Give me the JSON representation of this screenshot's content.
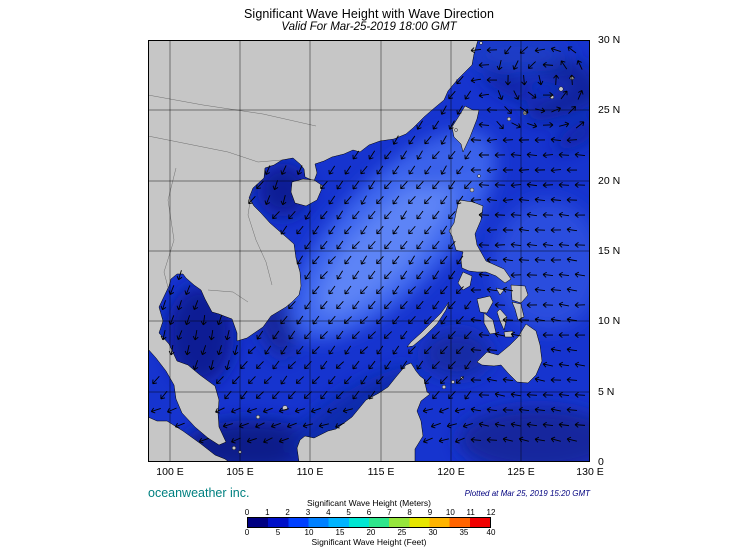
{
  "title": "Significant Wave Height with Wave Direction",
  "subtitle": "Valid For Mar-25-2019 18:00 GMT",
  "axes": {
    "lat": [
      "30 N",
      "25 N",
      "20 N",
      "15 N",
      "10 N",
      "5 N",
      "0"
    ],
    "lon": [
      "100 E",
      "105 E",
      "110 E",
      "115 E",
      "120 E",
      "125 E",
      "130 E"
    ]
  },
  "credit": "oceanweather inc.",
  "plotted": "Plotted at Mar 25, 2019 15:20 GMT",
  "legend": {
    "meters_label": "Significant Wave Height (Meters)",
    "feet_label": "Significant Wave Height (Feet)",
    "meters_ticks": [
      "0",
      "1",
      "2",
      "3",
      "4",
      "5",
      "6",
      "7",
      "8",
      "9",
      "10",
      "11",
      "12"
    ],
    "feet_ticks": [
      "0",
      "5",
      "10",
      "15",
      "20",
      "25",
      "30",
      "35",
      "40"
    ],
    "colors": [
      "#000082",
      "#0010c8",
      "#0040ff",
      "#0080ff",
      "#00b4ff",
      "#00e6d2",
      "#2ee68c",
      "#96e63c",
      "#e6e600",
      "#ffb400",
      "#ff6400",
      "#f00000"
    ]
  },
  "chart_data": {
    "type": "heatmap",
    "title": "Significant Wave Height with Wave Direction",
    "valid_time": "Mar-25-2019 18:00 GMT",
    "lon_ticks_deg_e": [
      100,
      105,
      110,
      115,
      120,
      125,
      130
    ],
    "lat_ticks_deg_n": [
      0,
      5,
      10,
      15,
      20,
      25,
      30
    ],
    "colorbar": {
      "units_top": "Meters",
      "range_m": [
        0,
        12
      ],
      "units_bottom": "Feet",
      "range_ft": [
        0,
        40
      ]
    },
    "approx_field_readings_m": [
      {
        "region": "central South China Sea band",
        "hs_m": 2.5
      },
      {
        "region": "Gulf of Tonkin",
        "hs_m": 0.8
      },
      {
        "region": "Gulf of Thailand",
        "hs_m": 0.7
      },
      {
        "region": "Philippine Sea east of Luzon",
        "hs_m": 1.8
      },
      {
        "region": "northeast Pacific corner",
        "hs_m": 1.0
      },
      {
        "region": "waters off NW Borneo",
        "hs_m": 1.0
      }
    ],
    "vectors": "wave direction arrows, predominantly toward southwest in the South China Sea, toward west east of the Philippines, cyclonic swirl near 127E 27N"
  }
}
